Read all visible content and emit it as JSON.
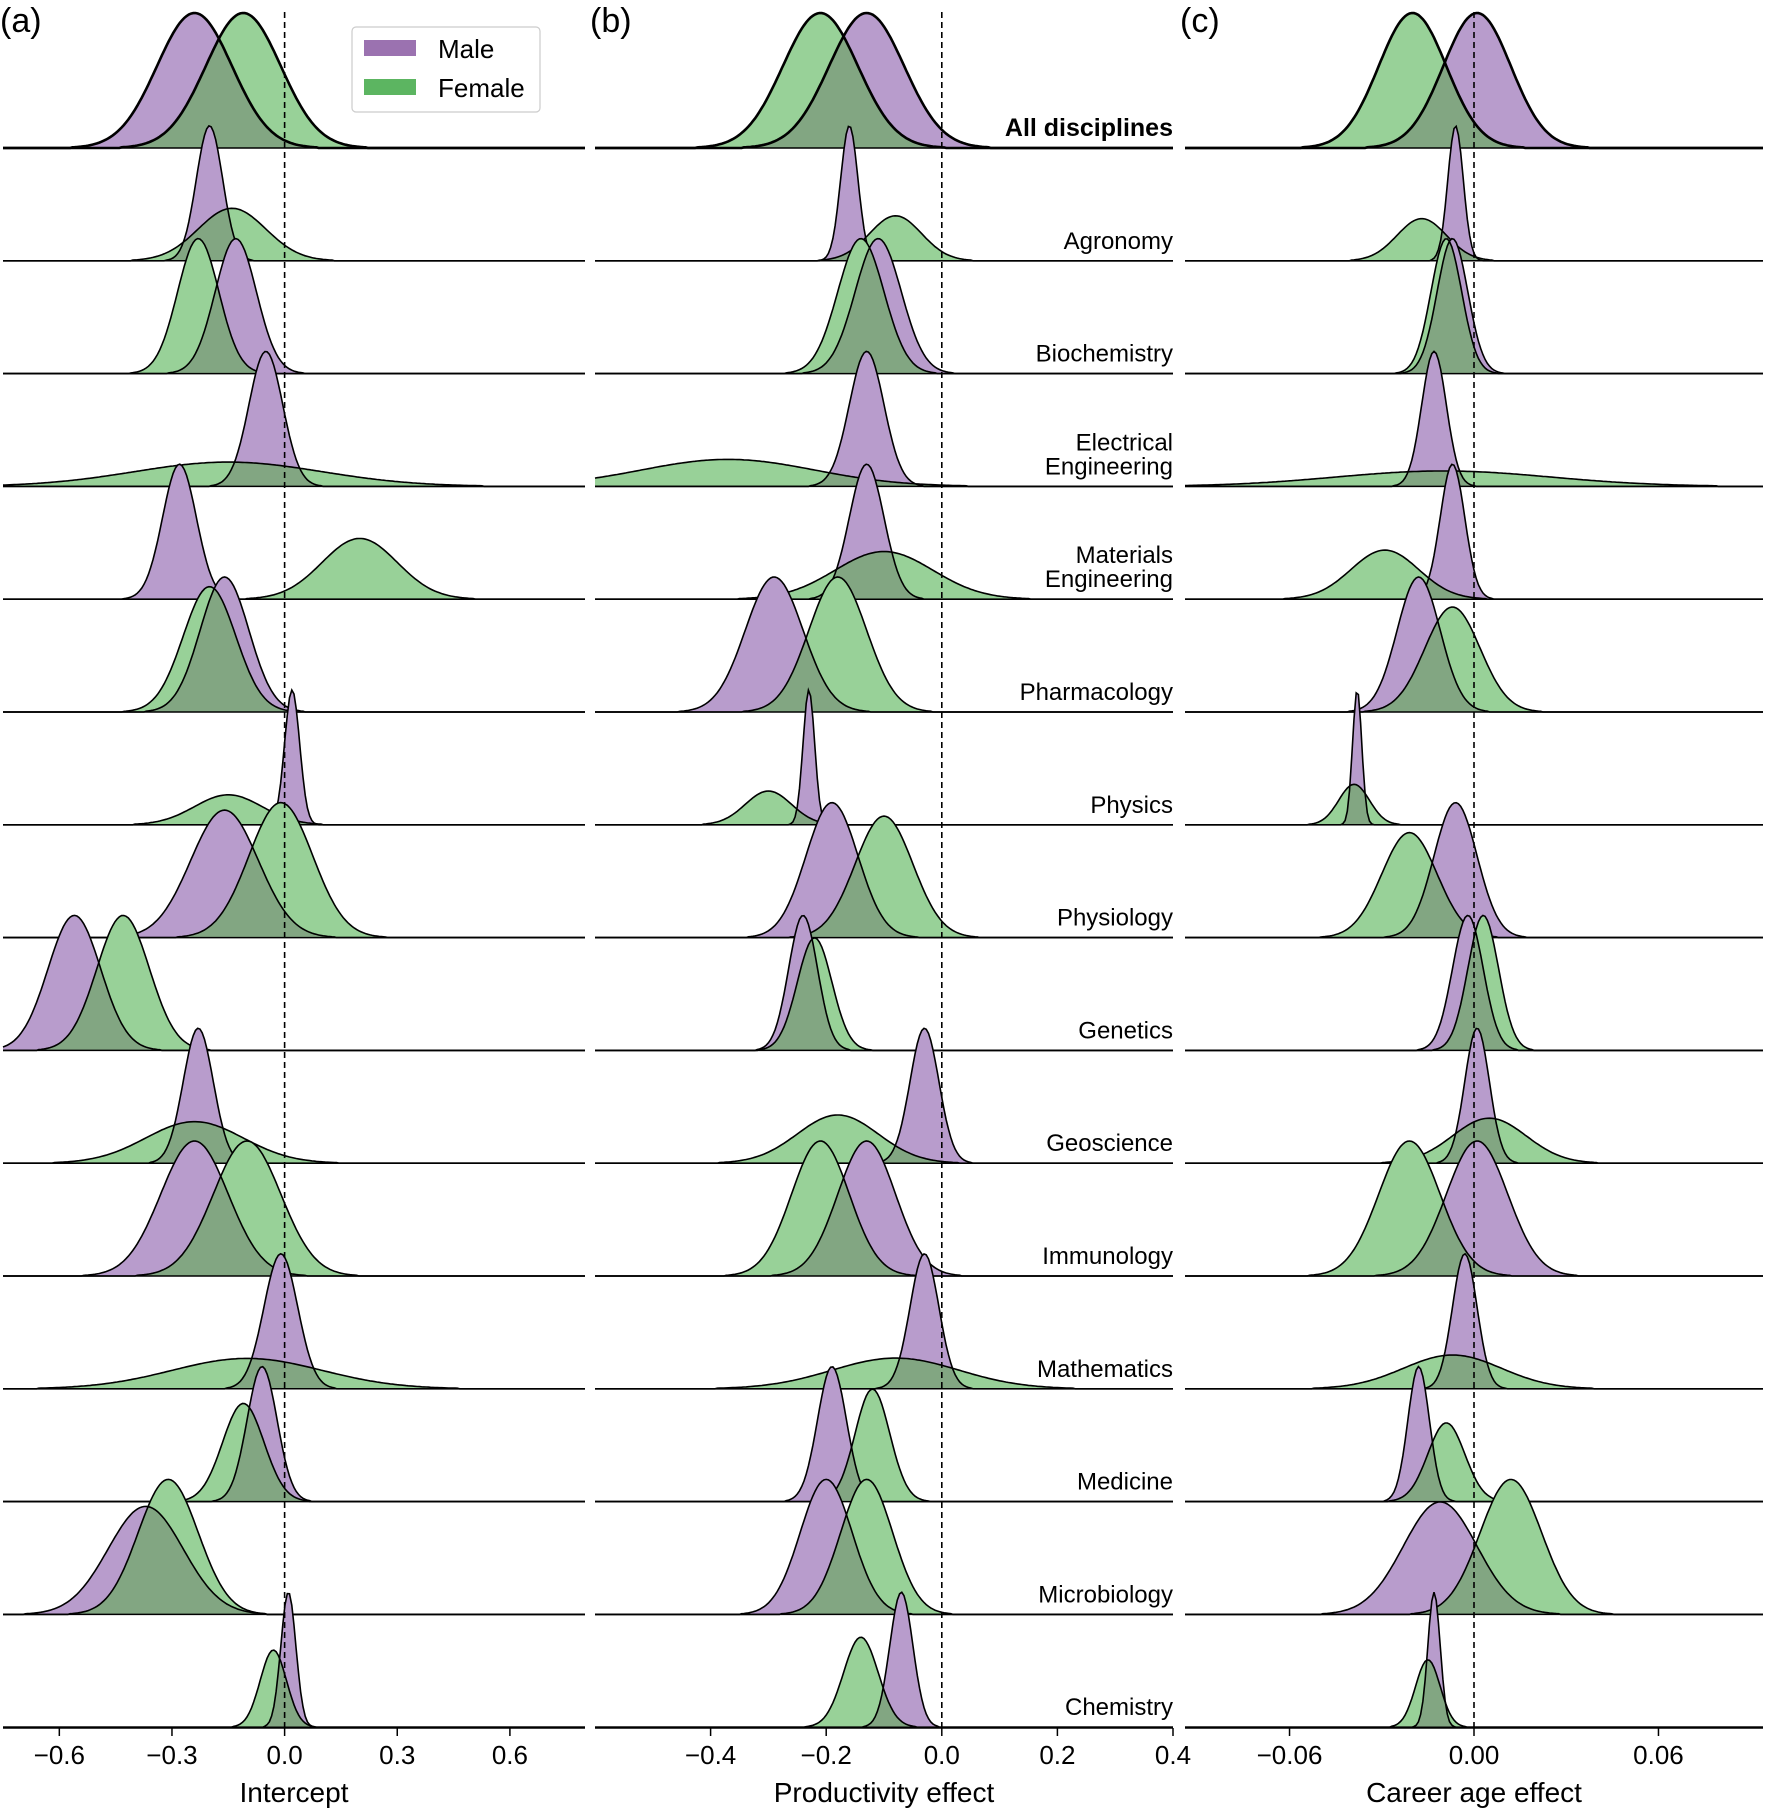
{
  "chart_data": [
    {
      "type": "ridgeline-density",
      "panel_label": "(a)",
      "xlabel": "Intercept",
      "xlim": [
        -0.75,
        0.8
      ],
      "xticks": [
        -0.6,
        -0.3,
        0.0,
        0.3,
        0.6
      ],
      "xtick_labels": [
        "−0.6",
        "−0.3",
        "0.0",
        "0.3",
        "0.6"
      ],
      "reference_line": 0.0,
      "rows": [
        {
          "male": {
            "mean": -0.24,
            "sd": 0.1
          },
          "female": {
            "mean": -0.11,
            "sd": 0.1
          }
        },
        {
          "male": {
            "mean": -0.2,
            "sd": 0.035
          },
          "female": {
            "mean": -0.14,
            "sd": 0.09
          }
        },
        {
          "male": {
            "mean": -0.13,
            "sd": 0.055
          },
          "female": {
            "mean": -0.23,
            "sd": 0.055
          }
        },
        {
          "male": {
            "mean": -0.05,
            "sd": 0.045
          },
          "female": {
            "mean": -0.15,
            "sd": 0.25
          }
        },
        {
          "male": {
            "mean": -0.28,
            "sd": 0.045
          },
          "female": {
            "mean": 0.2,
            "sd": 0.1
          }
        },
        {
          "male": {
            "mean": -0.16,
            "sd": 0.065
          },
          "female": {
            "mean": -0.2,
            "sd": 0.07
          }
        },
        {
          "male": {
            "mean": 0.02,
            "sd": 0.02
          },
          "female": {
            "mean": -0.15,
            "sd": 0.09
          }
        },
        {
          "male": {
            "mean": -0.16,
            "sd": 0.09
          },
          "female": {
            "mean": -0.01,
            "sd": 0.085
          }
        },
        {
          "male": {
            "mean": -0.56,
            "sd": 0.07
          },
          "female": {
            "mean": -0.43,
            "sd": 0.07
          }
        },
        {
          "male": {
            "mean": -0.23,
            "sd": 0.04
          },
          "female": {
            "mean": -0.24,
            "sd": 0.13
          }
        },
        {
          "male": {
            "mean": -0.24,
            "sd": 0.09
          },
          "female": {
            "mean": -0.1,
            "sd": 0.09
          }
        },
        {
          "male": {
            "mean": -0.01,
            "sd": 0.045
          },
          "female": {
            "mean": -0.1,
            "sd": 0.2
          }
        },
        {
          "male": {
            "mean": -0.06,
            "sd": 0.04
          },
          "female": {
            "mean": -0.11,
            "sd": 0.055
          }
        },
        {
          "male": {
            "mean": -0.37,
            "sd": 0.1
          },
          "female": {
            "mean": -0.31,
            "sd": 0.08
          }
        },
        {
          "male": {
            "mean": 0.01,
            "sd": 0.02
          },
          "female": {
            "mean": -0.03,
            "sd": 0.035
          }
        }
      ]
    },
    {
      "type": "ridgeline-density",
      "panel_label": "(b)",
      "xlabel": "Productivity effect",
      "xlim": [
        -0.6,
        0.4
      ],
      "xticks": [
        -0.4,
        -0.2,
        0.0,
        0.2,
        0.4
      ],
      "xtick_labels": [
        "−0.4",
        "−0.2",
        "0.0",
        "0.2",
        "0.4"
      ],
      "reference_line": 0.0,
      "rows": [
        {
          "male": {
            "mean": -0.13,
            "sd": 0.065
          },
          "female": {
            "mean": -0.21,
            "sd": 0.065
          }
        },
        {
          "male": {
            "mean": -0.16,
            "sd": 0.015
          },
          "female": {
            "mean": -0.08,
            "sd": 0.045
          }
        },
        {
          "male": {
            "mean": -0.11,
            "sd": 0.04
          },
          "female": {
            "mean": -0.14,
            "sd": 0.04
          }
        },
        {
          "male": {
            "mean": -0.13,
            "sd": 0.03
          },
          "female": {
            "mean": -0.37,
            "sd": 0.15
          }
        },
        {
          "male": {
            "mean": -0.13,
            "sd": 0.03
          },
          "female": {
            "mean": -0.1,
            "sd": 0.085
          }
        },
        {
          "male": {
            "mean": -0.29,
            "sd": 0.05
          },
          "female": {
            "mean": -0.18,
            "sd": 0.05
          }
        },
        {
          "male": {
            "mean": -0.23,
            "sd": 0.01
          },
          "female": {
            "mean": -0.3,
            "sd": 0.04
          }
        },
        {
          "male": {
            "mean": -0.19,
            "sd": 0.045
          },
          "female": {
            "mean": -0.1,
            "sd": 0.05
          }
        },
        {
          "male": {
            "mean": -0.24,
            "sd": 0.025
          },
          "female": {
            "mean": -0.22,
            "sd": 0.03
          }
        },
        {
          "male": {
            "mean": -0.03,
            "sd": 0.025
          },
          "female": {
            "mean": -0.18,
            "sd": 0.07
          }
        },
        {
          "male": {
            "mean": -0.13,
            "sd": 0.05
          },
          "female": {
            "mean": -0.21,
            "sd": 0.05
          }
        },
        {
          "male": {
            "mean": -0.03,
            "sd": 0.025
          },
          "female": {
            "mean": -0.08,
            "sd": 0.11
          }
        },
        {
          "male": {
            "mean": -0.19,
            "sd": 0.025
          },
          "female": {
            "mean": -0.12,
            "sd": 0.03
          }
        },
        {
          "male": {
            "mean": -0.2,
            "sd": 0.045
          },
          "female": {
            "mean": -0.13,
            "sd": 0.045
          }
        },
        {
          "male": {
            "mean": -0.07,
            "sd": 0.02
          },
          "female": {
            "mean": -0.14,
            "sd": 0.03
          }
        }
      ]
    },
    {
      "type": "ridgeline-density",
      "panel_label": "(c)",
      "xlabel": "Career age effect",
      "xlim": [
        -0.094,
        0.094
      ],
      "xticks": [
        -0.06,
        0.0,
        0.06
      ],
      "xtick_labels": [
        "−0.06",
        "0.00",
        "0.06"
      ],
      "reference_line": 0.0,
      "rows": [
        {
          "male": {
            "mean": 0.001,
            "sd": 0.011
          },
          "female": {
            "mean": -0.02,
            "sd": 0.011
          }
        },
        {
          "male": {
            "mean": -0.006,
            "sd": 0.0025
          },
          "female": {
            "mean": -0.017,
            "sd": 0.008
          }
        },
        {
          "male": {
            "mean": -0.007,
            "sd": 0.005
          },
          "female": {
            "mean": -0.009,
            "sd": 0.005
          }
        },
        {
          "male": {
            "mean": -0.013,
            "sd": 0.004
          },
          "female": {
            "mean": -0.01,
            "sd": 0.035
          }
        },
        {
          "male": {
            "mean": -0.007,
            "sd": 0.004
          },
          "female": {
            "mean": -0.029,
            "sd": 0.011
          }
        },
        {
          "male": {
            "mean": -0.018,
            "sd": 0.007
          },
          "female": {
            "mean": -0.007,
            "sd": 0.009
          }
        },
        {
          "male": {
            "mean": -0.038,
            "sd": 0.0015
          },
          "female": {
            "mean": -0.039,
            "sd": 0.005
          }
        },
        {
          "male": {
            "mean": -0.006,
            "sd": 0.007
          },
          "female": {
            "mean": -0.021,
            "sd": 0.009
          }
        },
        {
          "male": {
            "mean": -0.002,
            "sd": 0.005
          },
          "female": {
            "mean": 0.003,
            "sd": 0.005
          }
        },
        {
          "male": {
            "mean": 0.001,
            "sd": 0.004
          },
          "female": {
            "mean": 0.005,
            "sd": 0.012
          }
        },
        {
          "male": {
            "mean": 0.001,
            "sd": 0.01
          },
          "female": {
            "mean": -0.021,
            "sd": 0.01
          }
        },
        {
          "male": {
            "mean": -0.003,
            "sd": 0.004
          },
          "female": {
            "mean": -0.007,
            "sd": 0.016
          }
        },
        {
          "male": {
            "mean": -0.018,
            "sd": 0.0035
          },
          "female": {
            "mean": -0.009,
            "sd": 0.006
          }
        },
        {
          "male": {
            "mean": -0.011,
            "sd": 0.012
          },
          "female": {
            "mean": 0.012,
            "sd": 0.01
          }
        },
        {
          "male": {
            "mean": -0.013,
            "sd": 0.002
          },
          "female": {
            "mean": -0.015,
            "sd": 0.004
          }
        }
      ]
    }
  ],
  "row_labels": [
    {
      "lines": [
        "All disciplines"
      ],
      "bold": true
    },
    {
      "lines": [
        "Agronomy"
      ]
    },
    {
      "lines": [
        "Biochemistry"
      ]
    },
    {
      "lines": [
        "Electrical",
        "Engineering"
      ]
    },
    {
      "lines": [
        "Materials",
        "Engineering"
      ]
    },
    {
      "lines": [
        "Pharmacology"
      ]
    },
    {
      "lines": [
        "Physics"
      ]
    },
    {
      "lines": [
        "Physiology"
      ]
    },
    {
      "lines": [
        "Genetics"
      ]
    },
    {
      "lines": [
        "Geoscience"
      ]
    },
    {
      "lines": [
        "Immunology"
      ]
    },
    {
      "lines": [
        "Mathematics"
      ]
    },
    {
      "lines": [
        "Medicine"
      ]
    },
    {
      "lines": [
        "Microbiology"
      ]
    },
    {
      "lines": [
        "Chemistry"
      ]
    }
  ],
  "legend": {
    "position": "top-center of panel (a)",
    "entries": [
      {
        "label": "Male",
        "color": "#9b72b0"
      },
      {
        "label": "Female",
        "color": "#5cb561"
      }
    ]
  },
  "colors": {
    "male_fill": "#b89ccc",
    "female_fill": "#98d198",
    "overlap_fill": "#82a682",
    "stroke": "#000000"
  }
}
